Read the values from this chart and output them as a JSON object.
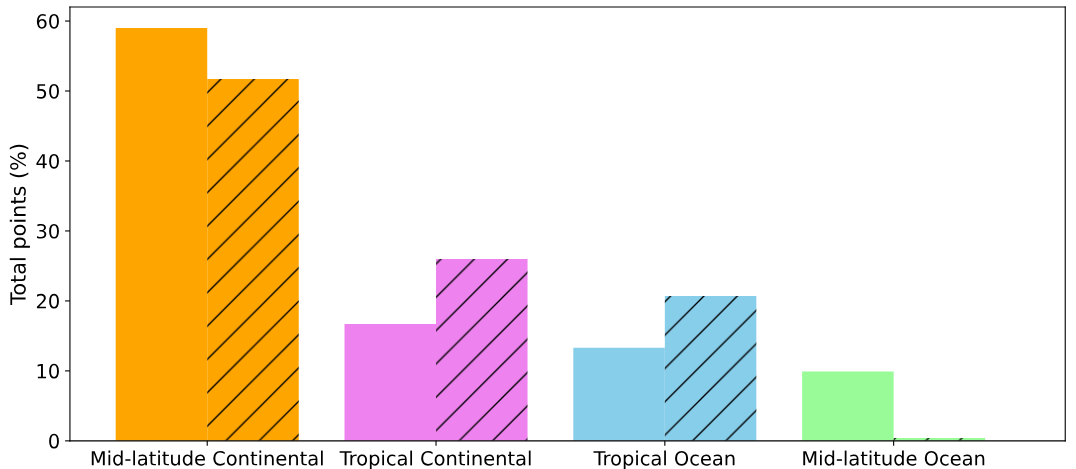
{
  "chart_data": {
    "type": "bar",
    "ylabel": "Total points (%)",
    "categories": [
      "Mid-latitude Continental",
      "Tropical Continental",
      "Tropical Ocean",
      "Mid-latitude Ocean"
    ],
    "series": [
      {
        "colors": [
          "#ffa500",
          "#ee82ee",
          "#87ceeb",
          "#98fb98"
        ],
        "values": [
          59.0,
          16.7,
          13.3,
          9.9
        ]
      },
      {
        "colors": [
          "#ffa500",
          "#ee82ee",
          "#87ceeb",
          "#98fb98"
        ],
        "values": [
          51.7,
          26.0,
          20.7,
          0.4
        ]
      }
    ],
    "ylim": [
      0,
      62
    ],
    "yticks": [
      0,
      10,
      20,
      30,
      40,
      50,
      60
    ],
    "grid": false,
    "legend": false
  }
}
